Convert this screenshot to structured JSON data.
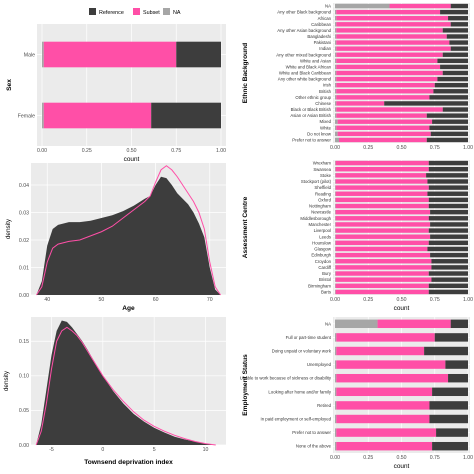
{
  "colors": {
    "reference": "#3d3d3d",
    "subset": "#ff4fa7",
    "na": "#a6a6a6",
    "panel": "#ebebeb",
    "grid": "#ffffff"
  },
  "legend": {
    "reference": "Reference",
    "subset": "Subset",
    "na": "NA"
  },
  "chart_data": [
    {
      "id": "sex",
      "type": "bar",
      "orientation": "horizontal",
      "stacked": true,
      "xlabel": "count",
      "ylabel": "Sex",
      "xlim": [
        0,
        1
      ],
      "xticks": [
        "0.00",
        "0.25",
        "0.50",
        "0.75",
        "1.00"
      ],
      "categories": [
        "Male",
        "Female"
      ],
      "series": [
        {
          "name": "NA",
          "values": [
            0.01,
            0.01
          ]
        },
        {
          "name": "Subset",
          "values": [
            0.74,
            0.6
          ]
        },
        {
          "name": "Reference",
          "values": [
            0.25,
            0.39
          ]
        }
      ]
    },
    {
      "id": "ethnic",
      "type": "bar",
      "orientation": "horizontal",
      "stacked": true,
      "xlabel": "",
      "ylabel": "Ethnic Background",
      "xlim": [
        0,
        1
      ],
      "xticks": [
        "0.00",
        "0.25",
        "0.50",
        "0.75",
        "1.00"
      ],
      "categories": [
        "NA",
        "Any other Black background",
        "African",
        "Caribbean",
        "Any other Asian background",
        "Bangladeshi",
        "Pakistani",
        "Indian",
        "Any other mixed background",
        "White and Asian",
        "White and Black African",
        "White and Black Caribbean",
        "Any other white background",
        "Irish",
        "British",
        "Other ethnic group",
        "Chinese",
        "Black or Black British",
        "Asian or Asian British",
        "Mixed",
        "White",
        "Do not know",
        "Prefer not to answer"
      ],
      "series": [
        {
          "name": "NA",
          "values": [
            0.41,
            0.01,
            0.01,
            0.01,
            0.01,
            0.01,
            0.01,
            0.01,
            0.01,
            0.01,
            0.01,
            0.01,
            0.01,
            0.01,
            0.01,
            0.01,
            0.01,
            0.01,
            0.01,
            0.02,
            0.01,
            0.02,
            0.03
          ]
        },
        {
          "name": "Subset",
          "values": [
            0.46,
            0.78,
            0.84,
            0.86,
            0.8,
            0.83,
            0.85,
            0.86,
            0.8,
            0.76,
            0.78,
            0.8,
            0.76,
            0.74,
            0.73,
            0.7,
            0.36,
            0.8,
            0.68,
            0.71,
            0.7,
            0.7,
            0.66
          ]
        },
        {
          "name": "Reference",
          "values": [
            0.13,
            0.21,
            0.15,
            0.13,
            0.19,
            0.16,
            0.14,
            0.13,
            0.19,
            0.23,
            0.21,
            0.19,
            0.23,
            0.25,
            0.26,
            0.29,
            0.63,
            0.19,
            0.31,
            0.27,
            0.29,
            0.28,
            0.31
          ]
        }
      ]
    },
    {
      "id": "age",
      "type": "area",
      "xlabel": "Age",
      "ylabel": "density",
      "xlim": [
        37,
        73
      ],
      "ylim": [
        0,
        0.048
      ],
      "xticks": [
        40,
        50,
        60,
        70
      ],
      "yticks": [
        "0.00",
        "0.01",
        "0.02",
        "0.03",
        "0.04"
      ],
      "series": [
        {
          "name": "Reference",
          "x": [
            38,
            39,
            40,
            41,
            42,
            44,
            46,
            48,
            50,
            52,
            54,
            56,
            58,
            59,
            60,
            61,
            62,
            63,
            64,
            65,
            66,
            67,
            68,
            69,
            70,
            71,
            72
          ],
          "y": [
            0.0,
            0.005,
            0.018,
            0.024,
            0.0255,
            0.0265,
            0.0265,
            0.027,
            0.028,
            0.029,
            0.0305,
            0.0325,
            0.035,
            0.036,
            0.04,
            0.043,
            0.0425,
            0.04,
            0.037,
            0.035,
            0.033,
            0.03,
            0.026,
            0.021,
            0.01,
            0.002,
            0.0
          ]
        },
        {
          "name": "Subset",
          "x": [
            38,
            39,
            40,
            41,
            42,
            44,
            46,
            48,
            50,
            52,
            54,
            56,
            58,
            59,
            60,
            61,
            62,
            63,
            64,
            65,
            66,
            67,
            68,
            69,
            70,
            71,
            72
          ],
          "y": [
            0.0,
            0.003,
            0.012,
            0.017,
            0.0185,
            0.0195,
            0.02,
            0.0215,
            0.023,
            0.025,
            0.028,
            0.031,
            0.034,
            0.036,
            0.041,
            0.0455,
            0.047,
            0.0455,
            0.043,
            0.04,
            0.037,
            0.034,
            0.03,
            0.024,
            0.012,
            0.003,
            0.0
          ]
        }
      ]
    },
    {
      "id": "centre",
      "type": "bar",
      "orientation": "horizontal",
      "stacked": true,
      "xlabel": "count",
      "ylabel": "Assessment Centre",
      "xlim": [
        0,
        1
      ],
      "xticks": [
        "0.00",
        "0.25",
        "0.50",
        "0.75",
        "1.00"
      ],
      "categories": [
        "Wrexham",
        "Swansea",
        "Stoke",
        "Stockport (pilot)",
        "Sheffield",
        "Reading",
        "Oxford",
        "Nottingham",
        "Newcastle",
        "Middlesborough",
        "Manchester",
        "Liverpool",
        "Leeds",
        "Hounslow",
        "Glasgow",
        "Edinburgh",
        "Croydon",
        "Cardiff",
        "Bury",
        "Bristol",
        "Birmingham",
        "Barts"
      ],
      "series": [
        {
          "name": "NA",
          "values": [
            0.005,
            0.005,
            0.005,
            0.005,
            0.005,
            0.005,
            0.005,
            0.005,
            0.005,
            0.005,
            0.005,
            0.005,
            0.005,
            0.005,
            0.005,
            0.005,
            0.005,
            0.005,
            0.005,
            0.005,
            0.005,
            0.005
          ]
        },
        {
          "name": "Subset",
          "values": [
            0.7,
            0.7,
            0.68,
            0.69,
            0.7,
            0.69,
            0.7,
            0.7,
            0.71,
            0.7,
            0.71,
            0.7,
            0.71,
            0.7,
            0.69,
            0.71,
            0.72,
            0.72,
            0.7,
            0.72,
            0.7,
            0.7
          ]
        },
        {
          "name": "Reference",
          "values": [
            0.295,
            0.295,
            0.315,
            0.305,
            0.295,
            0.305,
            0.295,
            0.295,
            0.285,
            0.295,
            0.285,
            0.295,
            0.285,
            0.295,
            0.305,
            0.285,
            0.275,
            0.275,
            0.295,
            0.275,
            0.295,
            0.295
          ]
        }
      ]
    },
    {
      "id": "townsend",
      "type": "area",
      "xlabel": "Townsend deprivation index",
      "ylabel": "density",
      "xlim": [
        -7,
        12
      ],
      "ylim": [
        0,
        0.185
      ],
      "xticks": [
        -5,
        0,
        5,
        10
      ],
      "yticks": [
        "0.00",
        "0.05",
        "0.10",
        "0.15"
      ],
      "series": [
        {
          "name": "Reference",
          "x": [
            -6.5,
            -6,
            -5.5,
            -5,
            -4.5,
            -4,
            -3.5,
            -3,
            -2.5,
            -2,
            -1.5,
            -1,
            0,
            1,
            2,
            3,
            4,
            5,
            6,
            7,
            8,
            9,
            10,
            11
          ],
          "y": [
            0.0,
            0.03,
            0.08,
            0.13,
            0.165,
            0.18,
            0.178,
            0.17,
            0.16,
            0.15,
            0.138,
            0.125,
            0.1,
            0.078,
            0.06,
            0.045,
            0.034,
            0.025,
            0.018,
            0.012,
            0.008,
            0.005,
            0.002,
            0.0
          ]
        },
        {
          "name": "Subset",
          "x": [
            -6.5,
            -6,
            -5.5,
            -5,
            -4.5,
            -4,
            -3.5,
            -3,
            -2.5,
            -2,
            -1.5,
            -1,
            0,
            1,
            2,
            3,
            4,
            5,
            6,
            7,
            8,
            9,
            10,
            11
          ],
          "y": [
            0.0,
            0.02,
            0.06,
            0.11,
            0.15,
            0.165,
            0.17,
            0.165,
            0.158,
            0.148,
            0.136,
            0.124,
            0.1,
            0.08,
            0.063,
            0.048,
            0.036,
            0.027,
            0.02,
            0.014,
            0.009,
            0.005,
            0.002,
            0.0
          ]
        }
      ]
    },
    {
      "id": "employment",
      "type": "bar",
      "orientation": "horizontal",
      "stacked": true,
      "xlabel": "count",
      "ylabel": "Employment Status",
      "xlim": [
        0,
        1
      ],
      "xticks": [
        "0.00",
        "0.25",
        "0.50",
        "0.75",
        "1.00"
      ],
      "categories": [
        "NA",
        "Full or part-time student",
        "Doing unpaid or voluntary work",
        "Unemployed",
        "Unable to work because of sickness or disability",
        "Looking after home and/or family",
        "Retired",
        "In paid employment or self-employed",
        "Prefer not to answer",
        "None of the above"
      ],
      "series": [
        {
          "name": "NA",
          "values": [
            0.32,
            0.01,
            0.01,
            0.01,
            0.01,
            0.01,
            0.01,
            0.01,
            0.01,
            0.01
          ]
        },
        {
          "name": "Subset",
          "values": [
            0.55,
            0.74,
            0.66,
            0.82,
            0.84,
            0.72,
            0.7,
            0.7,
            0.75,
            0.72
          ]
        },
        {
          "name": "Reference",
          "values": [
            0.13,
            0.25,
            0.33,
            0.17,
            0.15,
            0.27,
            0.29,
            0.29,
            0.24,
            0.27
          ]
        }
      ]
    }
  ]
}
